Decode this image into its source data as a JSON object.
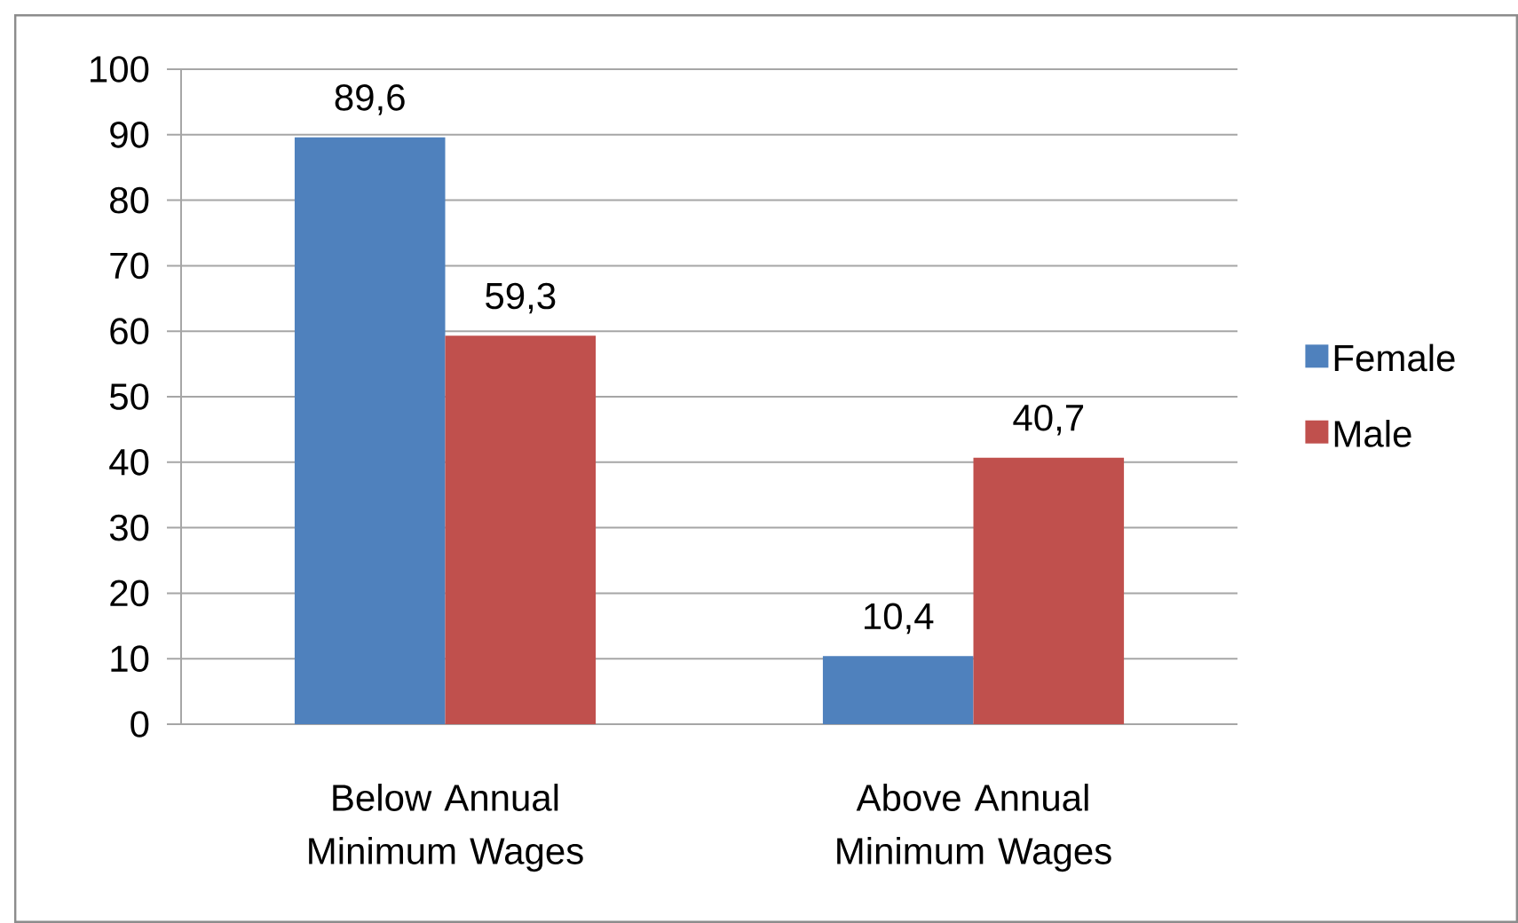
{
  "chart_data": {
    "type": "bar",
    "categories": [
      "Below Annual Minimum Wages",
      "Above Annual Minimum Wages"
    ],
    "series": [
      {
        "name": "Female",
        "color": "#4f81bd",
        "values": [
          89.6,
          10.4
        ],
        "value_labels": [
          "89,6",
          "10,4"
        ]
      },
      {
        "name": "Male",
        "color": "#c0504d",
        "values": [
          59.3,
          40.7
        ],
        "value_labels": [
          "59,3",
          "40,7"
        ]
      }
    ],
    "ylim": [
      0,
      100
    ],
    "yticks": [
      0,
      10,
      20,
      30,
      40,
      50,
      60,
      70,
      80,
      90,
      100
    ],
    "grid": "y",
    "legend": "right"
  }
}
